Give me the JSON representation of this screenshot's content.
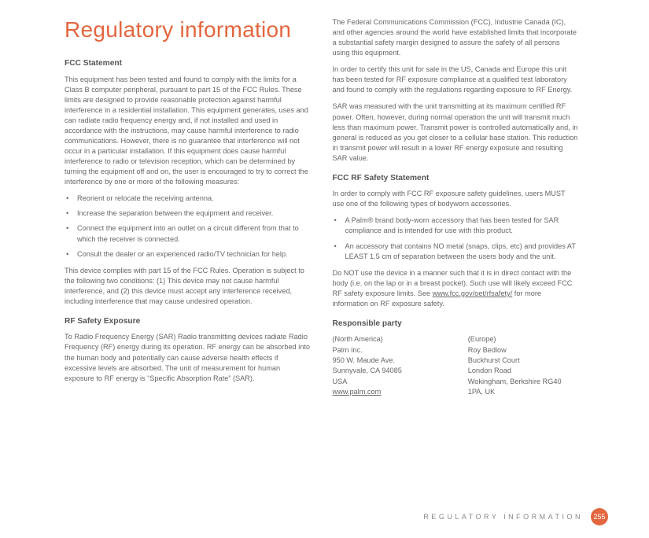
{
  "title": "Regulatory information",
  "left": {
    "h_fcc": "FCC Statement",
    "fcc_body": "This equipment has been tested and found to comply with the limits for a Class B computer peripheral, pursuant to part 15 of the FCC Rules. These limits are designed to provide reasonable protection against harmful interference in a residential installation. This equipment generates, uses and can radiate radio frequency energy and, if not installed and used in accordance with the instructions, may cause harmful interference to radio communications. However, there is no guarantee that interference will not occur in a particular installation. If this equipment does cause harmful interference to radio or television reception, which can be determined by turning the equipment off and on, the user is encouraged to try to correct the interference by one or more of the following measures:",
    "bullets": [
      "Reorient or relocate the receiving antenna.",
      "Increase the separation between the equipment and receiver.",
      "Connect the equipment into an outlet on a circuit different from that to which the receiver is connected.",
      "Consult the dealer or an experienced radio/TV technician for help."
    ],
    "fcc_after": "This device complies with part 15 of the FCC Rules. Operation is subject to the following two conditions: (1) This device may not cause harmful interference, and (2) this device must accept any interference received, including interference that may cause undesired operation.",
    "h_rf": "RF Safety Exposure",
    "rf_body": "To Radio Frequency Energy (SAR) Radio transmitting devices radiate Radio Frequency (RF) energy during its operation. RF energy can be absorbed into the human body and potentially can cause adverse health effects if excessive levels are absorbed. The unit of measurement for human exposure to RF energy is “Specific Absorption Rate” (SAR)."
  },
  "right": {
    "p1": "The Federal Communications Commission (FCC), Industrie Canada (IC), and other agencies around the world have established limits that incorporate a substantial safety margin designed to assure the safety of all persons using this equipment.",
    "p2": "In order to certify this unit for sale in the US, Canada and Europe this unit has been tested for RF exposure compliance at a qualified test laboratory and found to comply with the regulations regarding exposure to RF Energy.",
    "p3": "SAR was measured with the unit transmitting at its maximum certified RF power. Often, however, during normal operation the unit will transmit much less than maximum power. Transmit power is controlled automatically and, in general is reduced as you get closer to a cellular base station. This reduction in transmit power will result in a lower RF energy exposure and resulting SAR value.",
    "h_fccrf": "FCC RF Safety Statement",
    "fccrf_intro": "In order to comply with FCC RF exposure safety guidelines, users MUST use one of the following types of bodyworn accessories.",
    "bullets": [
      "A Palm® brand body-worn accessory that has been tested for SAR compliance and is intended for use with this product.",
      "An accessory that contains NO metal (snaps, clips, etc) and provides AT LEAST 1.5 cm of separation between the users body and the unit."
    ],
    "donot_pre": "Do NOT use the device in a manner such that it is in direct contact with the body (i.e. on the lap or in a breast pocket). Such use will likely exceed FCC RF safety exposure limits. See ",
    "donot_link": "www.fcc.gov/oet/rfsafety/",
    "donot_post": " for more information on RF exposure safety.",
    "h_resp": "Responsible party",
    "resp_na": {
      "region": "(North America)",
      "line1": "Palm Inc.",
      "line2": "950 W. Maude Ave.",
      "line3": "Sunnyvale, CA 94085",
      "line4": "USA",
      "link": "www.palm.com"
    },
    "resp_eu": {
      "region": "(Europe)",
      "line1": "Roy Bedlow",
      "line2": "Buckhurst Court",
      "line3": "London Road",
      "line4": "Wokingham, Berkshire RG40 1PA, UK"
    }
  },
  "footer": {
    "label": "REGULATORY INFORMATION",
    "page": "255"
  }
}
